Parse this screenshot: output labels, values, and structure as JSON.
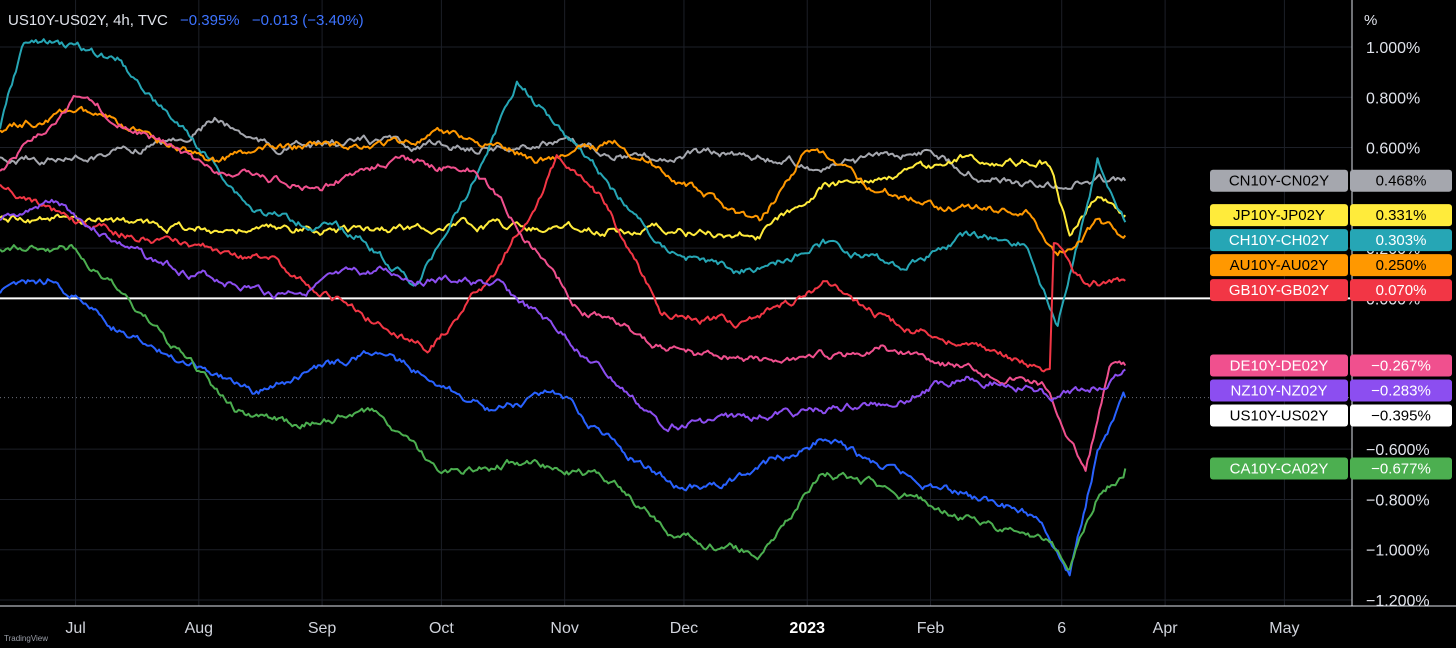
{
  "header": {
    "symbol": "US10Y-US02Y, 4h, TVC",
    "change_pct": "−0.395%",
    "change_abs": "−0.013 (−3.40%)"
  },
  "brand": "TradingView",
  "chart_data": {
    "type": "line",
    "y_unit": "%",
    "ylim": [
      -1.2,
      1.1
    ],
    "y_ticks": [
      1.0,
      0.8,
      0.6,
      0.2,
      0.0,
      -0.6,
      -0.8,
      -1.0,
      -1.2
    ],
    "y_tick_labels": [
      "1.000%",
      "0.800%",
      "0.600%",
      "0.200%",
      "0.000%",
      "−0.600%",
      "−0.800%",
      "−1.000%",
      "−1.200%"
    ],
    "x_ticks": [
      "Jul",
      "Aug",
      "Sep",
      "Oct",
      "Nov",
      "Dec",
      "2023",
      "Feb",
      "6",
      "Apr",
      "May"
    ],
    "x_tick_bold": [
      "2023"
    ],
    "x_range": [
      "2022-06-12",
      "2023-05-18"
    ],
    "x_tick_dates": [
      "2022-07-01",
      "2022-08-01",
      "2022-09-01",
      "2022-10-01",
      "2022-11-01",
      "2022-12-01",
      "2023-01-01",
      "2023-02-01",
      "2023-03-06",
      "2023-04-01",
      "2023-05-01"
    ],
    "grid": true,
    "zero_line": true,
    "series": [
      {
        "name": "CN10Y-CN02Y",
        "color": "#a5a7ae",
        "last": "0.468%",
        "last_value": 0.468,
        "points": [
          [
            "2022-06-12",
            0.55
          ],
          [
            "2022-07-01",
            0.56
          ],
          [
            "2022-07-25",
            0.62
          ],
          [
            "2022-08-05",
            0.71
          ],
          [
            "2022-08-20",
            0.6
          ],
          [
            "2022-09-15",
            0.62
          ],
          [
            "2022-10-10",
            0.6
          ],
          [
            "2022-11-01",
            0.62
          ],
          [
            "2022-11-20",
            0.56
          ],
          [
            "2022-12-15",
            0.58
          ],
          [
            "2023-01-05",
            0.52
          ],
          [
            "2023-01-20",
            0.55
          ],
          [
            "2023-02-01",
            0.6
          ],
          [
            "2023-02-15",
            0.48
          ],
          [
            "2023-03-01",
            0.45
          ],
          [
            "2023-03-10",
            0.47
          ],
          [
            "2023-03-22",
            0.468
          ]
        ]
      },
      {
        "name": "JP10Y-JP02Y",
        "color": "#ffeb3b",
        "last": "0.331%",
        "last_value": 0.331,
        "points": [
          [
            "2022-06-12",
            0.33
          ],
          [
            "2022-07-10",
            0.3
          ],
          [
            "2022-08-15",
            0.27
          ],
          [
            "2022-09-15",
            0.28
          ],
          [
            "2022-10-15",
            0.29
          ],
          [
            "2022-11-15",
            0.28
          ],
          [
            "2022-12-10",
            0.26
          ],
          [
            "2022-12-20",
            0.25
          ],
          [
            "2023-01-05",
            0.45
          ],
          [
            "2023-01-25",
            0.5
          ],
          [
            "2023-02-10",
            0.56
          ],
          [
            "2023-02-25",
            0.55
          ],
          [
            "2023-03-03",
            0.54
          ],
          [
            "2023-03-08",
            0.25
          ],
          [
            "2023-03-15",
            0.42
          ],
          [
            "2023-03-22",
            0.331
          ]
        ]
      },
      {
        "name": "CH10Y-CH02Y",
        "color": "#26a6b5",
        "last": "0.303%",
        "last_value": 0.303,
        "points": [
          [
            "2022-06-12",
            0.68
          ],
          [
            "2022-06-18",
            1.02
          ],
          [
            "2022-07-01",
            1.0
          ],
          [
            "2022-07-12",
            0.95
          ],
          [
            "2022-07-25",
            0.72
          ],
          [
            "2022-08-15",
            0.35
          ],
          [
            "2022-09-10",
            0.25
          ],
          [
            "2022-09-25",
            0.05
          ],
          [
            "2022-10-10",
            0.5
          ],
          [
            "2022-10-20",
            0.86
          ],
          [
            "2022-11-05",
            0.6
          ],
          [
            "2022-11-25",
            0.2
          ],
          [
            "2022-12-15",
            0.1
          ],
          [
            "2023-01-05",
            0.22
          ],
          [
            "2023-01-25",
            0.12
          ],
          [
            "2023-02-10",
            0.25
          ],
          [
            "2023-02-25",
            0.22
          ],
          [
            "2023-03-05",
            -0.12
          ],
          [
            "2023-03-15",
            0.55
          ],
          [
            "2023-03-22",
            0.303
          ]
        ]
      },
      {
        "name": "AU10Y-AU02Y",
        "color": "#ff9800",
        "last": "0.250%",
        "last_value": 0.25,
        "points": [
          [
            "2022-06-12",
            0.67
          ],
          [
            "2022-07-01",
            0.75
          ],
          [
            "2022-07-15",
            0.67
          ],
          [
            "2022-08-05",
            0.55
          ],
          [
            "2022-08-25",
            0.6
          ],
          [
            "2022-09-20",
            0.62
          ],
          [
            "2022-10-05",
            0.65
          ],
          [
            "2022-10-25",
            0.55
          ],
          [
            "2022-11-15",
            0.62
          ],
          [
            "2022-12-05",
            0.42
          ],
          [
            "2022-12-20",
            0.3
          ],
          [
            "2023-01-01",
            0.6
          ],
          [
            "2023-01-15",
            0.45
          ],
          [
            "2023-02-05",
            0.37
          ],
          [
            "2023-02-25",
            0.35
          ],
          [
            "2023-03-05",
            0.18
          ],
          [
            "2023-03-15",
            0.3
          ],
          [
            "2023-03-22",
            0.25
          ]
        ]
      },
      {
        "name": "GB10Y-GB02Y",
        "color": "#f23645",
        "last": "0.070%",
        "last_value": 0.07,
        "points": [
          [
            "2022-06-12",
            0.45
          ],
          [
            "2022-07-01",
            0.3
          ],
          [
            "2022-07-25",
            0.22
          ],
          [
            "2022-08-20",
            0.15
          ],
          [
            "2022-09-10",
            -0.05
          ],
          [
            "2022-09-28",
            -0.2
          ],
          [
            "2022-10-15",
            0.1
          ],
          [
            "2022-10-30",
            0.55
          ],
          [
            "2022-11-10",
            0.4
          ],
          [
            "2022-11-25",
            -0.05
          ],
          [
            "2022-12-15",
            -0.1
          ],
          [
            "2023-01-05",
            0.05
          ],
          [
            "2023-01-25",
            -0.12
          ],
          [
            "2023-02-15",
            -0.2
          ],
          [
            "2023-03-03",
            -0.3
          ],
          [
            "2023-03-04",
            0.2
          ],
          [
            "2023-03-12",
            0.05
          ],
          [
            "2023-03-22",
            0.07
          ]
        ]
      },
      {
        "name": "DE10Y-DE02Y",
        "color": "#f0508e",
        "last": "−0.267%",
        "last_value": -0.267,
        "points": [
          [
            "2022-06-12",
            0.5
          ],
          [
            "2022-07-01",
            0.8
          ],
          [
            "2022-07-15",
            0.68
          ],
          [
            "2022-08-05",
            0.5
          ],
          [
            "2022-09-01",
            0.45
          ],
          [
            "2022-09-20",
            0.55
          ],
          [
            "2022-10-10",
            0.5
          ],
          [
            "2022-11-05",
            -0.05
          ],
          [
            "2022-12-01",
            -0.22
          ],
          [
            "2022-12-25",
            -0.25
          ],
          [
            "2023-01-20",
            -0.2
          ],
          [
            "2023-02-15",
            -0.3
          ],
          [
            "2023-03-01",
            -0.35
          ],
          [
            "2023-03-12",
            -0.7
          ],
          [
            "2023-03-18",
            -0.3
          ],
          [
            "2023-03-22",
            -0.267
          ]
        ]
      },
      {
        "name": "NZ10Y-NZ02Y",
        "color": "#8c4ef0",
        "last": "−0.283%",
        "last_value": -0.283,
        "points": [
          [
            "2022-06-12",
            0.3
          ],
          [
            "2022-06-25",
            0.38
          ],
          [
            "2022-07-20",
            0.15
          ],
          [
            "2022-08-20",
            0.02
          ],
          [
            "2022-09-15",
            0.1
          ],
          [
            "2022-10-15",
            0.05
          ],
          [
            "2022-11-01",
            -0.15
          ],
          [
            "2022-11-25",
            -0.5
          ],
          [
            "2022-12-20",
            -0.47
          ],
          [
            "2023-01-20",
            -0.42
          ],
          [
            "2023-02-10",
            -0.3
          ],
          [
            "2023-02-25",
            -0.35
          ],
          [
            "2023-03-05",
            -0.4
          ],
          [
            "2023-03-15",
            -0.35
          ],
          [
            "2023-03-22",
            -0.283
          ]
        ]
      },
      {
        "name": "US10Y-US02Y",
        "color": "#2962ff",
        "last": "−0.395%",
        "last_value": -0.395,
        "points": [
          [
            "2022-06-12",
            0.03
          ],
          [
            "2022-06-25",
            0.08
          ],
          [
            "2022-07-10",
            -0.1
          ],
          [
            "2022-07-25",
            -0.22
          ],
          [
            "2022-08-15",
            -0.38
          ],
          [
            "2022-08-30",
            -0.3
          ],
          [
            "2022-09-15",
            -0.2
          ],
          [
            "2022-09-30",
            -0.35
          ],
          [
            "2022-10-15",
            -0.45
          ],
          [
            "2022-10-30",
            -0.38
          ],
          [
            "2022-11-15",
            -0.6
          ],
          [
            "2022-12-01",
            -0.77
          ],
          [
            "2022-12-15",
            -0.72
          ],
          [
            "2023-01-05",
            -0.55
          ],
          [
            "2023-01-20",
            -0.68
          ],
          [
            "2023-02-10",
            -0.78
          ],
          [
            "2023-03-01",
            -0.88
          ],
          [
            "2023-03-08",
            -1.1
          ],
          [
            "2023-03-15",
            -0.6
          ],
          [
            "2023-03-22",
            -0.395
          ]
        ]
      },
      {
        "name": "CA10Y-CA02Y",
        "color": "#4caf50",
        "last": "−0.677%",
        "last_value": -0.677,
        "points": [
          [
            "2022-06-12",
            0.2
          ],
          [
            "2022-06-30",
            0.2
          ],
          [
            "2022-07-20",
            -0.1
          ],
          [
            "2022-08-10",
            -0.45
          ],
          [
            "2022-08-25",
            -0.5
          ],
          [
            "2022-09-15",
            -0.45
          ],
          [
            "2022-10-01",
            -0.7
          ],
          [
            "2022-10-20",
            -0.65
          ],
          [
            "2022-11-10",
            -0.7
          ],
          [
            "2022-11-30",
            -0.95
          ],
          [
            "2022-12-20",
            -1.02
          ],
          [
            "2023-01-05",
            -0.68
          ],
          [
            "2023-01-25",
            -0.78
          ],
          [
            "2023-02-20",
            -0.92
          ],
          [
            "2023-03-01",
            -0.95
          ],
          [
            "2023-03-08",
            -1.06
          ],
          [
            "2023-03-15",
            -0.78
          ],
          [
            "2023-03-22",
            -0.677
          ]
        ]
      }
    ]
  }
}
